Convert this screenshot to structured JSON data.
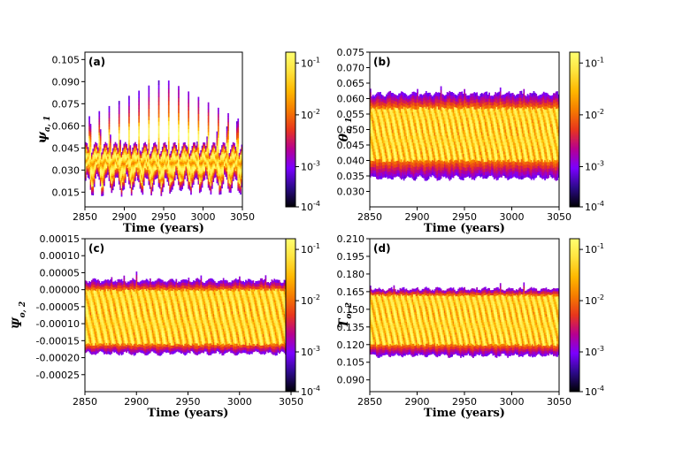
{
  "colormap": {
    "stops": [
      "#000004",
      "#2c0a8a",
      "#7a00ff",
      "#b7008f",
      "#e8361c",
      "#f57c00",
      "#ffb800",
      "#ffe23c",
      "#ffff70"
    ],
    "ticks": [
      "10^-4",
      "10^-3",
      "10^-2",
      "10^-1"
    ]
  },
  "chart_data": [
    {
      "type": "heatmap",
      "panel_label": "(a)",
      "xlabel": "Time (years)",
      "ylabel_base": "ψ",
      "ylabel_sub": "a, 1",
      "xlim": [
        2850,
        3050
      ],
      "ylim": [
        0.005,
        0.11
      ],
      "xticks": [
        "2850",
        "2900",
        "2950",
        "3000",
        "3050"
      ],
      "yticks": [
        {
          "value": 0.015,
          "label": "0.015"
        },
        {
          "value": 0.03,
          "label": "0.030"
        },
        {
          "value": 0.045,
          "label": "0.045"
        },
        {
          "value": 0.06,
          "label": "0.060"
        },
        {
          "value": 0.075,
          "label": "0.075"
        },
        {
          "value": 0.09,
          "label": "0.090"
        },
        {
          "value": 0.105,
          "label": "0.105"
        }
      ],
      "colorbar_ticks": [
        "10^-4",
        "10^-3",
        "10^-2",
        "10^-1"
      ],
      "pattern": "spikes",
      "band_low": 0.018,
      "band_high": 0.045,
      "spike_peak": 0.096,
      "period_years": 12.5
    },
    {
      "type": "heatmap",
      "panel_label": "(b)",
      "xlabel": "Time (years)",
      "ylabel_base": "θ",
      "ylabel_sub": "a, 1",
      "xlim": [
        2850,
        3050
      ],
      "ylim": [
        0.025,
        0.075
      ],
      "xticks": [
        "2850",
        "2900",
        "2950",
        "3000",
        "3050"
      ],
      "yticks": [
        {
          "value": 0.03,
          "label": "0.030"
        },
        {
          "value": 0.035,
          "label": "0.035"
        },
        {
          "value": 0.04,
          "label": "0.040"
        },
        {
          "value": 0.045,
          "label": "0.045"
        },
        {
          "value": 0.05,
          "label": "0.050"
        },
        {
          "value": 0.055,
          "label": "0.055"
        },
        {
          "value": 0.06,
          "label": "0.060"
        },
        {
          "value": 0.065,
          "label": "0.065"
        },
        {
          "value": 0.07,
          "label": "0.070"
        },
        {
          "value": 0.075,
          "label": "0.075"
        }
      ],
      "colorbar_ticks": [
        "10^-4",
        "10^-3",
        "10^-2",
        "10^-1"
      ],
      "pattern": "band",
      "band_low": 0.034,
      "band_high": 0.062,
      "core_low": 0.04,
      "core_high": 0.057,
      "period_years": 12.5
    },
    {
      "type": "heatmap",
      "panel_label": "(c)",
      "xlabel": "Time (years)",
      "ylabel_base": "Ψ",
      "ylabel_sub": "o, 2",
      "xlim": [
        2850,
        3050
      ],
      "ylim": [
        -0.0003,
        0.00015
      ],
      "xticks": [
        "2850",
        "2900",
        "2950",
        "3000",
        "3050"
      ],
      "yticks": [
        {
          "value": 0.00015,
          "label": "0.00015"
        },
        {
          "value": 0.0001,
          "label": "0.00010"
        },
        {
          "value": 5e-05,
          "label": "0.00005"
        },
        {
          "value": 0.0,
          "label": "0.00000"
        },
        {
          "value": -5e-05,
          "label": "-0.00005"
        },
        {
          "value": -0.0001,
          "label": "-0.00010"
        },
        {
          "value": -0.00015,
          "label": "-0.00015"
        },
        {
          "value": -0.0002,
          "label": "-0.00020"
        },
        {
          "value": -0.00025,
          "label": "-0.00025"
        }
      ],
      "colorbar_ticks": [
        "10^-4",
        "10^-3",
        "10^-2",
        "10^-1"
      ],
      "pattern": "band",
      "band_low": -0.00019,
      "band_high": 3e-05,
      "core_low": -0.00016,
      "core_high": 0.0,
      "period_years": 12.5
    },
    {
      "type": "heatmap",
      "panel_label": "(d)",
      "xlabel": "Time (years)",
      "ylabel_base": "T",
      "ylabel_sub": "o, 2",
      "xlim": [
        2850,
        3050
      ],
      "ylim": [
        0.08,
        0.21
      ],
      "xticks": [
        "2850",
        "2900",
        "2950",
        "3000",
        "3050"
      ],
      "yticks": [
        {
          "value": 0.09,
          "label": "0.090"
        },
        {
          "value": 0.105,
          "label": "0.105"
        },
        {
          "value": 0.12,
          "label": "0.120"
        },
        {
          "value": 0.135,
          "label": "0.135"
        },
        {
          "value": 0.15,
          "label": "0.150"
        },
        {
          "value": 0.165,
          "label": "0.165"
        },
        {
          "value": 0.18,
          "label": "0.180"
        },
        {
          "value": 0.195,
          "label": "0.195"
        },
        {
          "value": 0.21,
          "label": "0.210"
        }
      ],
      "colorbar_ticks": [
        "10^-4",
        "10^-3",
        "10^-2",
        "10^-1"
      ],
      "pattern": "band",
      "band_low": 0.11,
      "band_high": 0.168,
      "core_low": 0.12,
      "core_high": 0.162,
      "period_years": 12.5
    }
  ]
}
